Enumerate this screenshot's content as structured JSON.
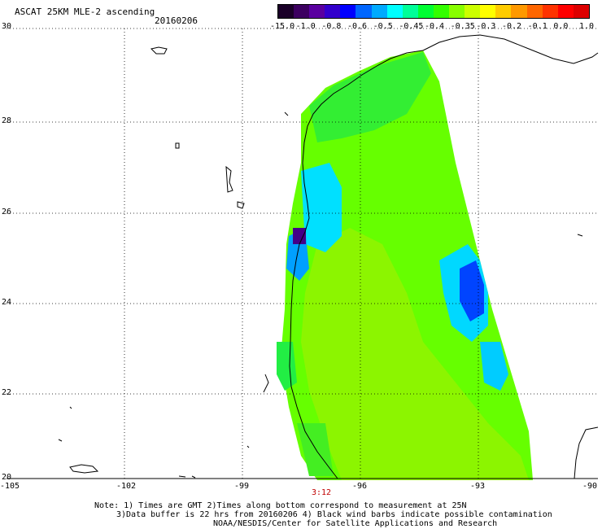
{
  "title": "ASCAT 25KM MLE-2 ascending",
  "date": "20160206",
  "colorbar": {
    "labels": [
      "-15.0",
      "-1.0",
      "-0.8",
      "-0.6",
      "-0.5",
      "-0.45",
      "-0.4",
      "-0.35",
      "-0.3",
      "-0.2",
      "-0.1",
      "0.0",
      "1.0"
    ],
    "colors": [
      "#1a0028",
      "#3c0060",
      "#5a00a0",
      "#3300cc",
      "#0000ff",
      "#0066ff",
      "#00aaff",
      "#00ffff",
      "#00ff99",
      "#00ff33",
      "#33ff00",
      "#88ff00",
      "#ccff00",
      "#ffff00",
      "#ffcc00",
      "#ff9900",
      "#ff6600",
      "#ff3300",
      "#ff0000",
      "#dd0000"
    ]
  },
  "axes": {
    "lat_labels": [
      "30",
      "28",
      "26",
      "24",
      "22",
      "20"
    ],
    "lon_labels": [
      "-105",
      "-102",
      "-99",
      "-96",
      "-93",
      "-90"
    ]
  },
  "pass_time": "3:12",
  "notes": {
    "line1": "Note: 1) Times are GMT 2)Times along bottom correspond to measurement at 25N",
    "line2": "3)Data buffer is 22 hrs from 20160206 4) Black wind barbs indicate possible contamination",
    "line3": "NOAA/NESDIS/Center for Satellite Applications and Research"
  }
}
